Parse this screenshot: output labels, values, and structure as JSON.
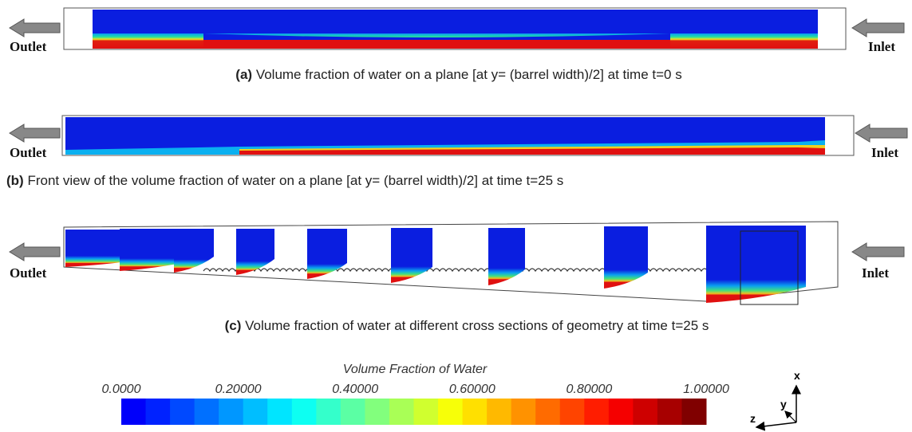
{
  "panels": [
    {
      "outlet": "Outlet",
      "inlet": "Inlet",
      "caption": {
        "label": "(a)",
        "text": "Volume fraction of water on a plane [at y= (barrel width)/2] at time t=0 s"
      }
    },
    {
      "outlet": "Outlet",
      "inlet": "Inlet",
      "caption": {
        "label": "(b)",
        "text": "Front view of the volume fraction of water on a plane [at y= (barrel width)/2] at time t=25 s"
      }
    },
    {
      "outlet": "Outlet",
      "inlet": "Inlet",
      "caption": {
        "label": "(c)",
        "text": "Volume fraction of water at different cross sections of geometry at time t=25 s"
      }
    }
  ],
  "colorbar": {
    "title": "Volume Fraction of Water",
    "ticks": [
      "0.0000",
      "0.20000",
      "0.40000",
      "0.60000",
      "0.80000",
      "1.00000"
    ]
  },
  "axes": {
    "x": "x",
    "y": "y",
    "z": "z"
  }
}
